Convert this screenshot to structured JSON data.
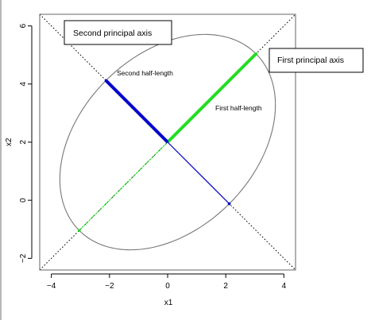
{
  "chart_data": {
    "type": "line",
    "title": "",
    "xlabel": "x1",
    "ylabel": "x2",
    "xlim": [
      -4.4,
      4.4
    ],
    "ylim": [
      -2.4,
      6.4
    ],
    "x_ticks": [
      -4,
      -2,
      0,
      2,
      4
    ],
    "y_ticks": [
      -2,
      0,
      2,
      4,
      6
    ],
    "x_tick_labels": [
      "−4",
      "−2",
      "0",
      "2",
      "4"
    ],
    "y_tick_labels": [
      "−2",
      "0",
      "2",
      "4",
      "6"
    ],
    "grid": false,
    "center": [
      0,
      2
    ],
    "ellipse": {
      "center": [
        0,
        2
      ],
      "major_direction": [
        1,
        1
      ],
      "half_length_major": 4.3,
      "half_length_minor": 3.0,
      "color": "#777777"
    },
    "principal_axes_lines": [
      {
        "from": [
          -4.4,
          6.4
        ],
        "to": [
          4.4,
          -2.4
        ],
        "style": "dotted",
        "color": "#000000"
      },
      {
        "from": [
          -4.4,
          -2.4
        ],
        "to": [
          4.4,
          6.4
        ],
        "style": "dotted",
        "color": "#000000"
      }
    ],
    "series": [
      {
        "name": "First half-length",
        "points": [
          [
            0,
            2
          ],
          [
            3.04,
            5.04
          ]
        ],
        "color": "#22dd22",
        "style": "thick"
      },
      {
        "name": "",
        "points": [
          [
            0,
            2
          ],
          [
            -3.04,
            -1.04
          ]
        ],
        "color": "#22dd22",
        "style": "thin"
      },
      {
        "name": "Second half-length",
        "points": [
          [
            0,
            2
          ],
          [
            -2.12,
            4.12
          ]
        ],
        "color": "#0000cc",
        "style": "thick"
      },
      {
        "name": "",
        "points": [
          [
            0,
            2
          ],
          [
            2.12,
            -0.12
          ]
        ],
        "color": "#0000cc",
        "style": "thin"
      }
    ],
    "annotations": [
      {
        "text": "Second half-length",
        "x": -1.85,
        "y": 4.3
      },
      {
        "text": "First half-length",
        "x": 1.6,
        "y": 3.1
      }
    ],
    "callout_boxes": [
      {
        "text": "Second principal axis"
      },
      {
        "text": "First principal axis"
      }
    ]
  }
}
